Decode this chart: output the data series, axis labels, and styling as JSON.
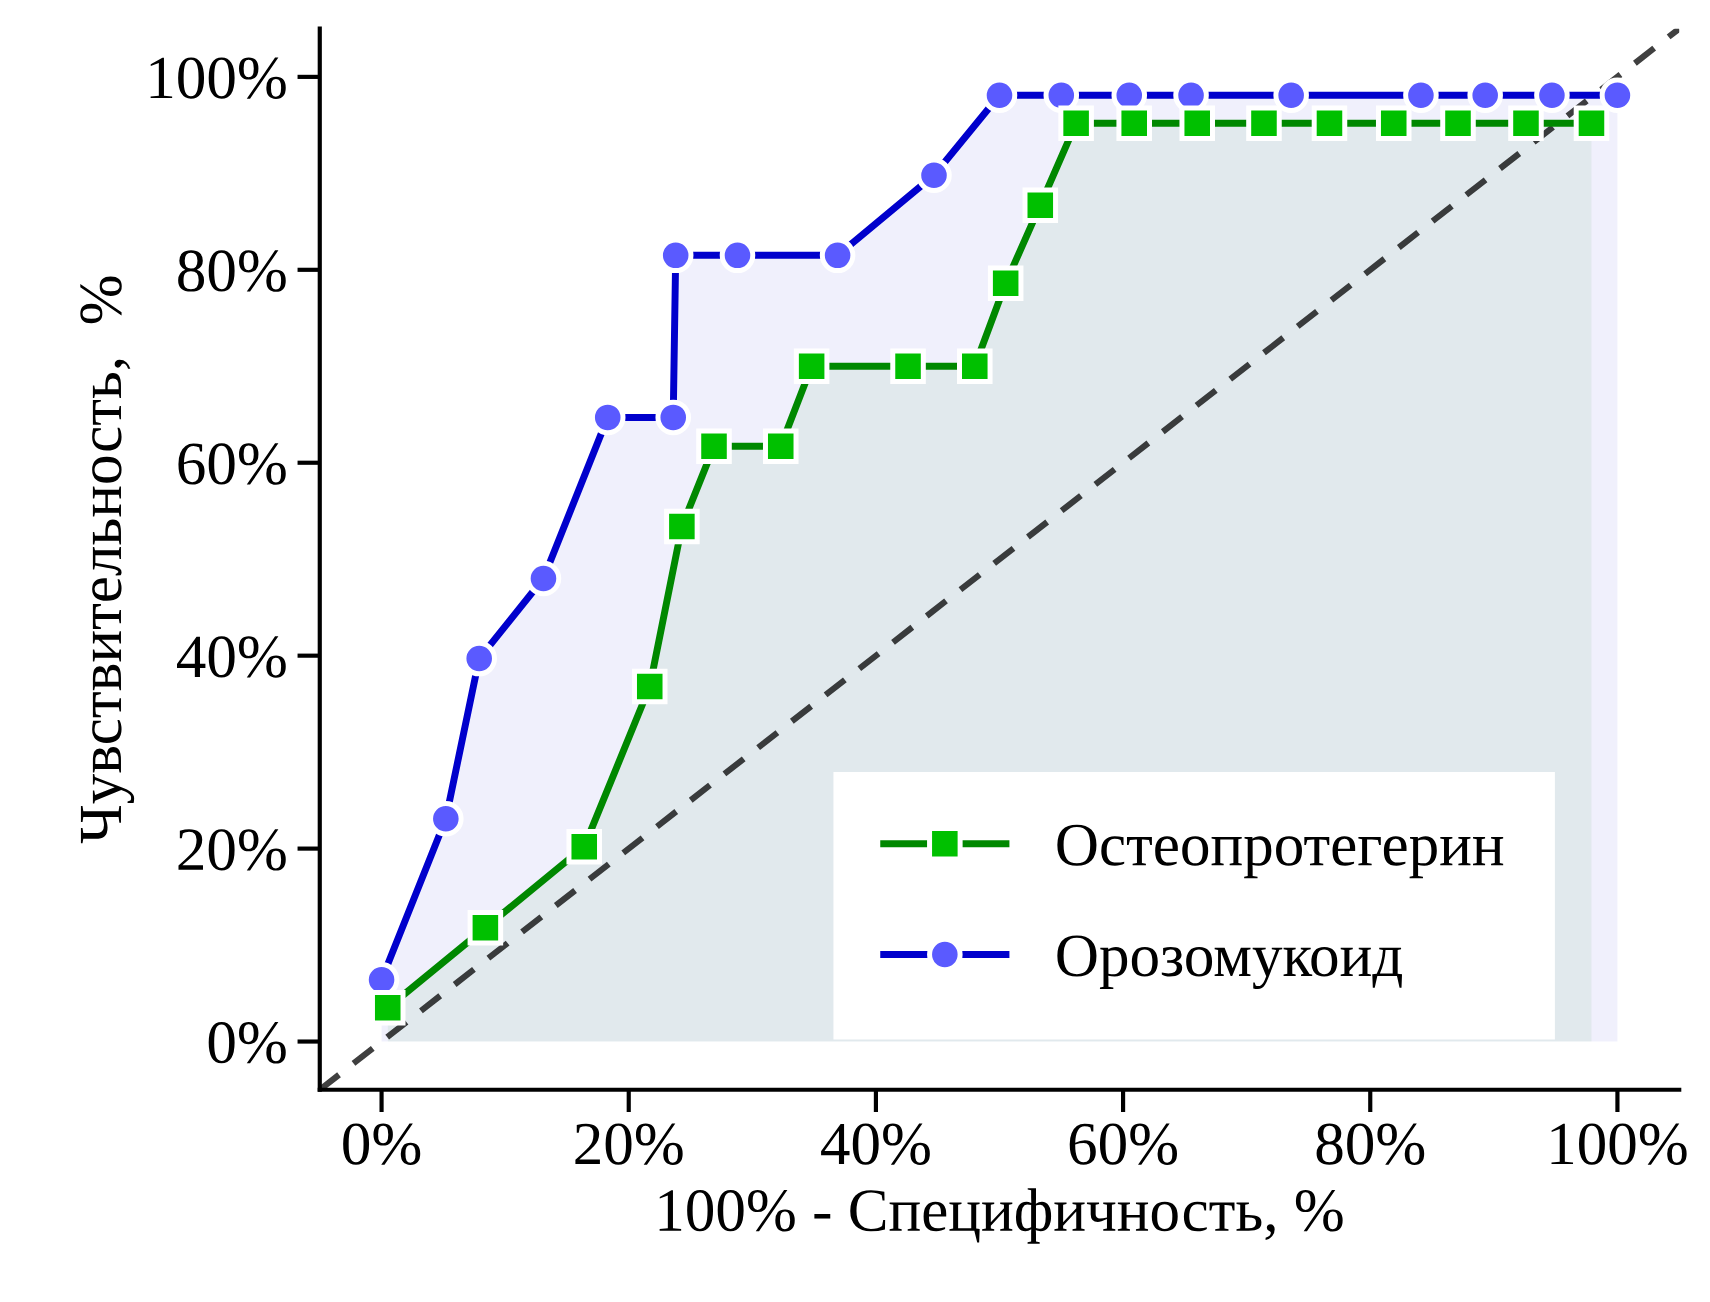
{
  "chart_data": {
    "type": "line",
    "xlabel": "100% - Специфичность, %",
    "ylabel": "Чувствительность,  %",
    "xlim": [
      -5,
      105
    ],
    "ylim": [
      -5,
      105
    ],
    "xticks": [
      {
        "value": 0,
        "label": "0%"
      },
      {
        "value": 20,
        "label": "20%"
      },
      {
        "value": 40,
        "label": "40%"
      },
      {
        "value": 60,
        "label": "60%"
      },
      {
        "value": 80,
        "label": "80%"
      },
      {
        "value": 100,
        "label": "100%"
      }
    ],
    "yticks": [
      {
        "value": 0,
        "label": "0%"
      },
      {
        "value": 20,
        "label": "20%"
      },
      {
        "value": 40,
        "label": "40%"
      },
      {
        "value": 60,
        "label": "60%"
      },
      {
        "value": 80,
        "label": "80%"
      },
      {
        "value": 100,
        "label": "100%"
      }
    ],
    "grid": false,
    "legend": "bottom right",
    "series": [
      {
        "color": "#000000",
        "line_style": "dashed",
        "marker": "none",
        "x": [
          -5,
          105
        ],
        "values": [
          -5,
          105
        ]
      },
      {
        "type": "area",
        "name": "Орозомукоид",
        "color": "#0000cc",
        "marker": "circle",
        "line_style": "solid",
        "x": [
          0,
          5.2,
          7.9,
          13.1,
          18.3,
          23.6,
          23.8,
          28.8,
          36.9,
          44.7,
          50,
          55,
          60.5,
          65.5,
          73.6,
          84.1,
          89.3,
          94.7,
          100
        ],
        "values": [
          6.4,
          23.1,
          39.7,
          48,
          64.7,
          64.7,
          81.5,
          81.5,
          81.5,
          89.8,
          98.1,
          98.1,
          98.1,
          98.1,
          98.1,
          98.1,
          98.1,
          98.1,
          98.1
        ]
      },
      {
        "type": "area",
        "name": "Остеопротегерин",
        "color": "#008800",
        "marker": "square",
        "line_style": "solid",
        "x": [
          0.5,
          8.4,
          16.4,
          21.7,
          24.3,
          26.9,
          32.3,
          34.8,
          42.6,
          48,
          50.5,
          53.3,
          56.2,
          60.9,
          66,
          71.4,
          76.7,
          81.9,
          87.1,
          92.6,
          97.9
        ],
        "values": [
          3.5,
          11.8,
          20.2,
          36.8,
          53.4,
          61.7,
          61.7,
          70,
          70,
          70,
          78.6,
          86.7,
          95.2,
          95.2,
          95.2,
          95.2,
          95.2,
          95.2,
          95.2,
          95.2,
          95.2
        ]
      }
    ]
  }
}
